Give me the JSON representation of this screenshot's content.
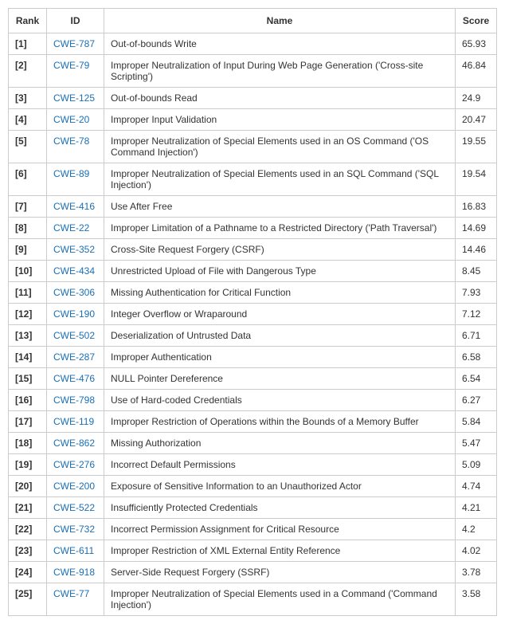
{
  "table": {
    "columns": [
      "Rank",
      "ID",
      "Name",
      "Score"
    ],
    "column_widths": [
      "48px",
      "72px",
      "auto",
      "52px"
    ],
    "link_color": "#1a6fb5",
    "border_color": "#cccccc",
    "text_color": "#333333",
    "background_color": "#ffffff",
    "header_fontsize": 12,
    "cell_fontsize": 12,
    "rows": [
      {
        "rank": "[1]",
        "id": "CWE-787",
        "name": "Out-of-bounds Write",
        "score": "65.93"
      },
      {
        "rank": "[2]",
        "id": "CWE-79",
        "name": "Improper Neutralization of Input During Web Page Generation ('Cross-site Scripting')",
        "score": "46.84"
      },
      {
        "rank": "[3]",
        "id": "CWE-125",
        "name": "Out-of-bounds Read",
        "score": "24.9"
      },
      {
        "rank": "[4]",
        "id": "CWE-20",
        "name": "Improper Input Validation",
        "score": "20.47"
      },
      {
        "rank": "[5]",
        "id": "CWE-78",
        "name": "Improper Neutralization of Special Elements used in an OS Command ('OS Command Injection')",
        "score": "19.55"
      },
      {
        "rank": "[6]",
        "id": "CWE-89",
        "name": "Improper Neutralization of Special Elements used in an SQL Command ('SQL Injection')",
        "score": "19.54"
      },
      {
        "rank": "[7]",
        "id": "CWE-416",
        "name": "Use After Free",
        "score": "16.83"
      },
      {
        "rank": "[8]",
        "id": "CWE-22",
        "name": "Improper Limitation of a Pathname to a Restricted Directory ('Path Traversal')",
        "score": "14.69"
      },
      {
        "rank": "[9]",
        "id": "CWE-352",
        "name": "Cross-Site Request Forgery (CSRF)",
        "score": "14.46"
      },
      {
        "rank": "[10]",
        "id": "CWE-434",
        "name": "Unrestricted Upload of File with Dangerous Type",
        "score": "8.45"
      },
      {
        "rank": "[11]",
        "id": "CWE-306",
        "name": "Missing Authentication for Critical Function",
        "score": "7.93"
      },
      {
        "rank": "[12]",
        "id": "CWE-190",
        "name": "Integer Overflow or Wraparound",
        "score": "7.12"
      },
      {
        "rank": "[13]",
        "id": "CWE-502",
        "name": "Deserialization of Untrusted Data",
        "score": "6.71"
      },
      {
        "rank": "[14]",
        "id": "CWE-287",
        "name": "Improper Authentication",
        "score": "6.58"
      },
      {
        "rank": "[15]",
        "id": "CWE-476",
        "name": "NULL Pointer Dereference",
        "score": "6.54"
      },
      {
        "rank": "[16]",
        "id": "CWE-798",
        "name": "Use of Hard-coded Credentials",
        "score": "6.27"
      },
      {
        "rank": "[17]",
        "id": "CWE-119",
        "name": "Improper Restriction of Operations within the Bounds of a Memory Buffer",
        "score": "5.84"
      },
      {
        "rank": "[18]",
        "id": "CWE-862",
        "name": "Missing Authorization",
        "score": "5.47"
      },
      {
        "rank": "[19]",
        "id": "CWE-276",
        "name": "Incorrect Default Permissions",
        "score": "5.09"
      },
      {
        "rank": "[20]",
        "id": "CWE-200",
        "name": "Exposure of Sensitive Information to an Unauthorized Actor",
        "score": "4.74"
      },
      {
        "rank": "[21]",
        "id": "CWE-522",
        "name": "Insufficiently Protected Credentials",
        "score": "4.21"
      },
      {
        "rank": "[22]",
        "id": "CWE-732",
        "name": "Incorrect Permission Assignment for Critical Resource",
        "score": "4.2"
      },
      {
        "rank": "[23]",
        "id": "CWE-611",
        "name": "Improper Restriction of XML External Entity Reference",
        "score": "4.02"
      },
      {
        "rank": "[24]",
        "id": "CWE-918",
        "name": "Server-Side Request Forgery (SSRF)",
        "score": "3.78"
      },
      {
        "rank": "[25]",
        "id": "CWE-77",
        "name": "Improper Neutralization of Special Elements used in a Command ('Command Injection')",
        "score": "3.58"
      }
    ]
  }
}
